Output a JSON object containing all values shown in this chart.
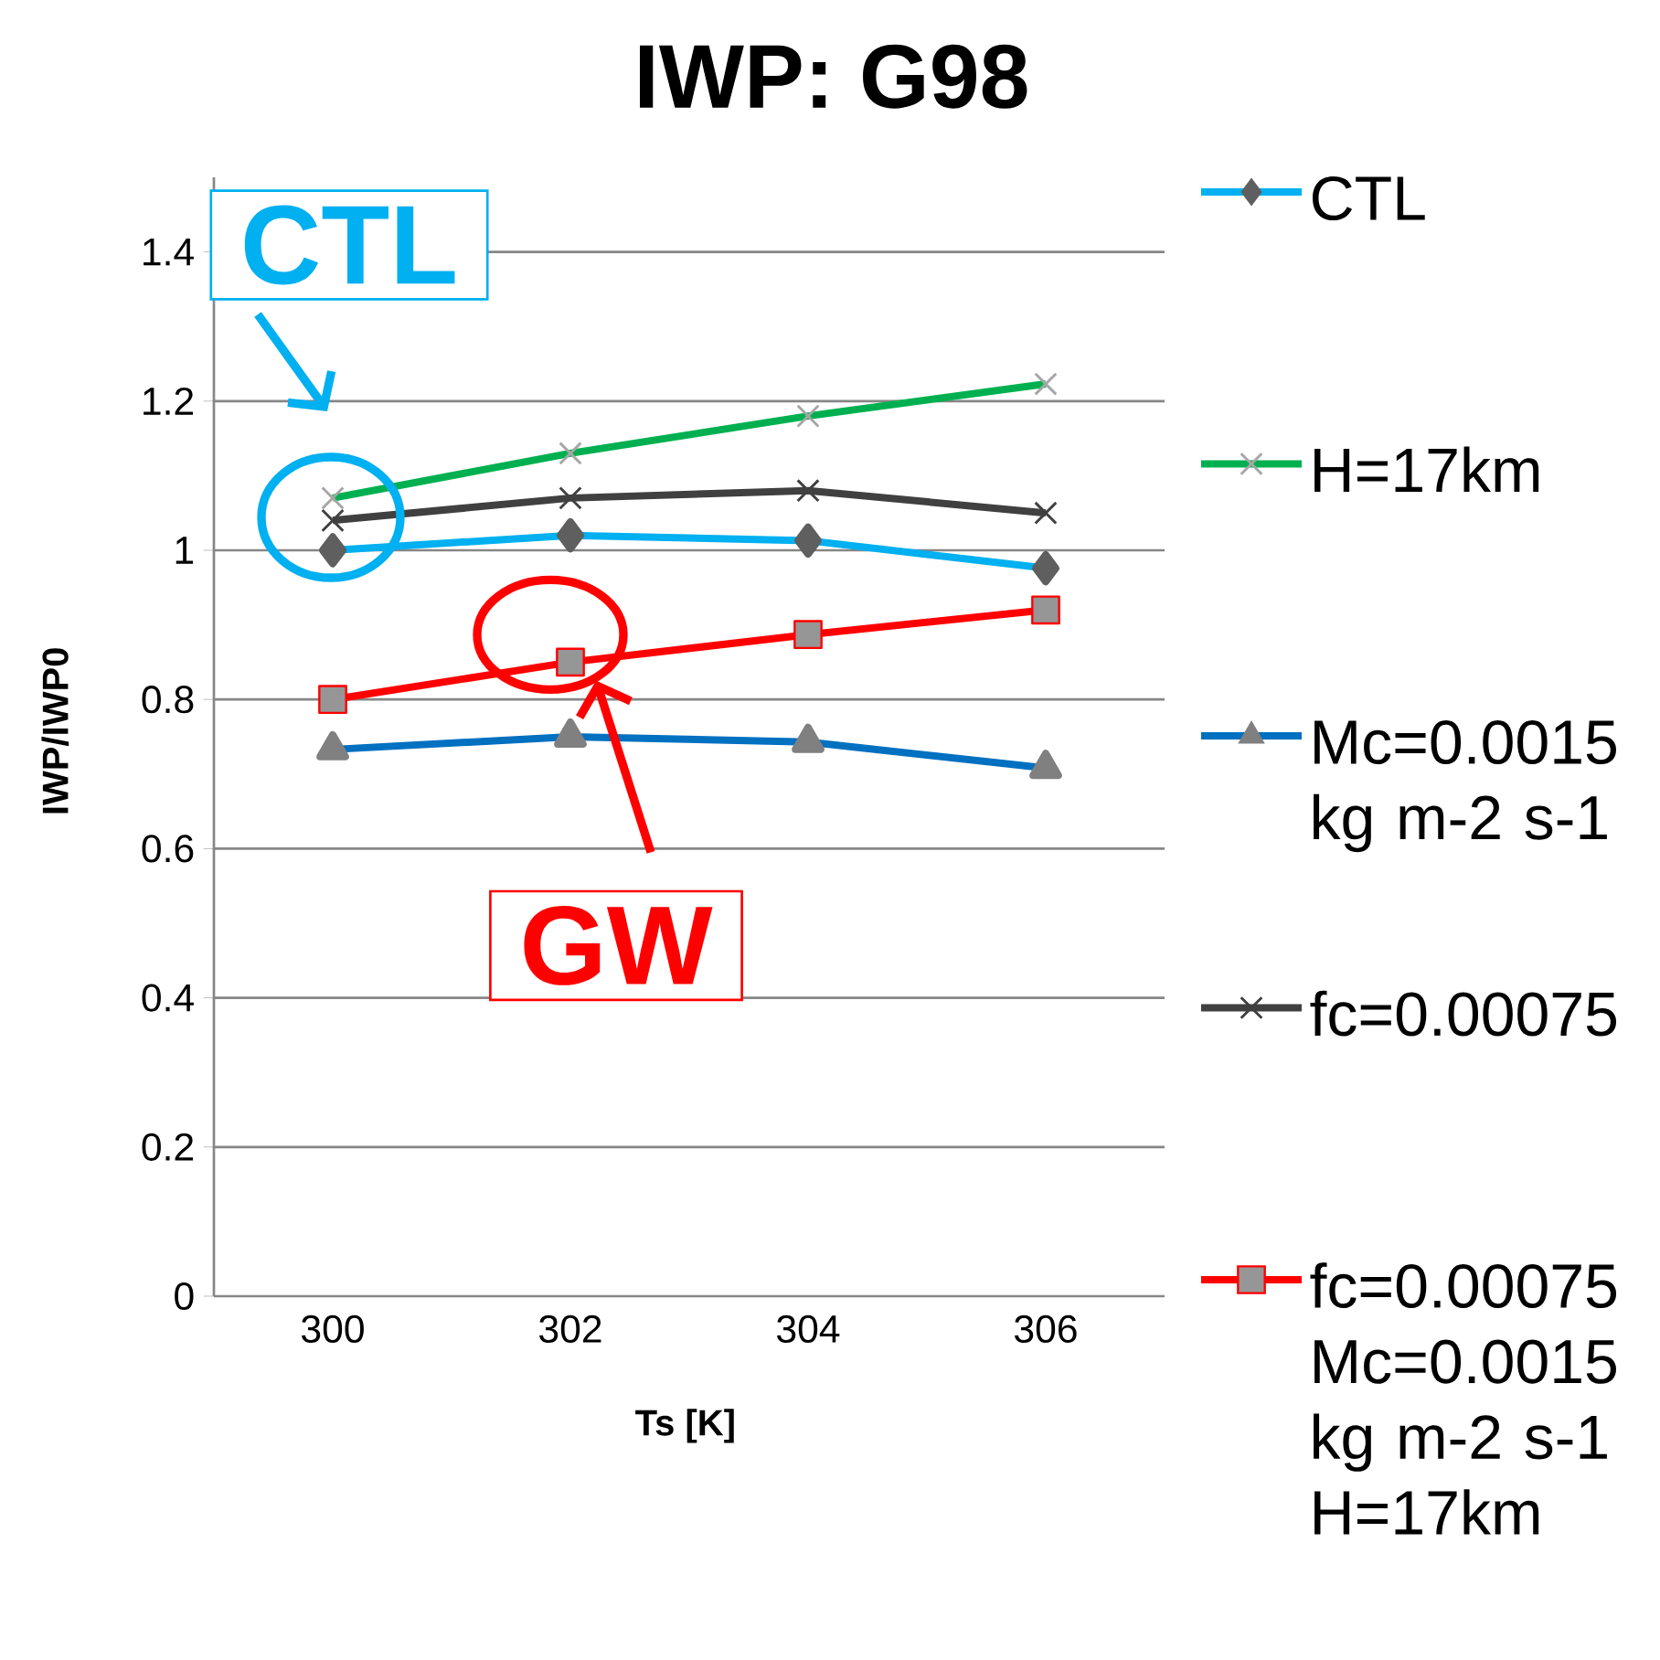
{
  "chart_data": {
    "type": "line",
    "title": "IWP: G98",
    "xlabel": "Ts [K]",
    "ylabel": "IWP/IWP0",
    "categories": [
      "300",
      "302",
      "304",
      "306"
    ],
    "ylim": [
      0,
      1.5
    ],
    "yticks": [
      0,
      0.2,
      0.4,
      0.6,
      0.8,
      1,
      1.2,
      1.4
    ],
    "grid": "y",
    "legend": "right",
    "series": [
      {
        "name": "CTL",
        "color": "#00b0f0",
        "marker": "diamond",
        "values": [
          1.0,
          1.02,
          1.013,
          0.976
        ]
      },
      {
        "name": "H=17km",
        "color": "#00b050",
        "marker": "cross",
        "values": [
          1.07,
          1.13,
          1.18,
          1.223
        ]
      },
      {
        "name": "Mc=0.0015 kg m-2 s-1",
        "color": "#0070c0",
        "marker": "triangle",
        "values": [
          0.733,
          0.75,
          0.743,
          0.708
        ]
      },
      {
        "name": "fc=0.00075",
        "color": "#404040",
        "marker": "cross",
        "values": [
          1.04,
          1.07,
          1.08,
          1.05
        ]
      },
      {
        "name": "fc=0.00075 Mc=0.0015 kg m-2 s-1 H=17km",
        "color": "#ff0000",
        "marker": "square",
        "values": [
          0.8,
          0.85,
          0.887,
          0.92
        ]
      }
    ],
    "annotations": [
      {
        "text": "CTL",
        "x": "300",
        "y": 1.0
      },
      {
        "text": "GW",
        "x": "302",
        "y": 0.85
      }
    ]
  }
}
